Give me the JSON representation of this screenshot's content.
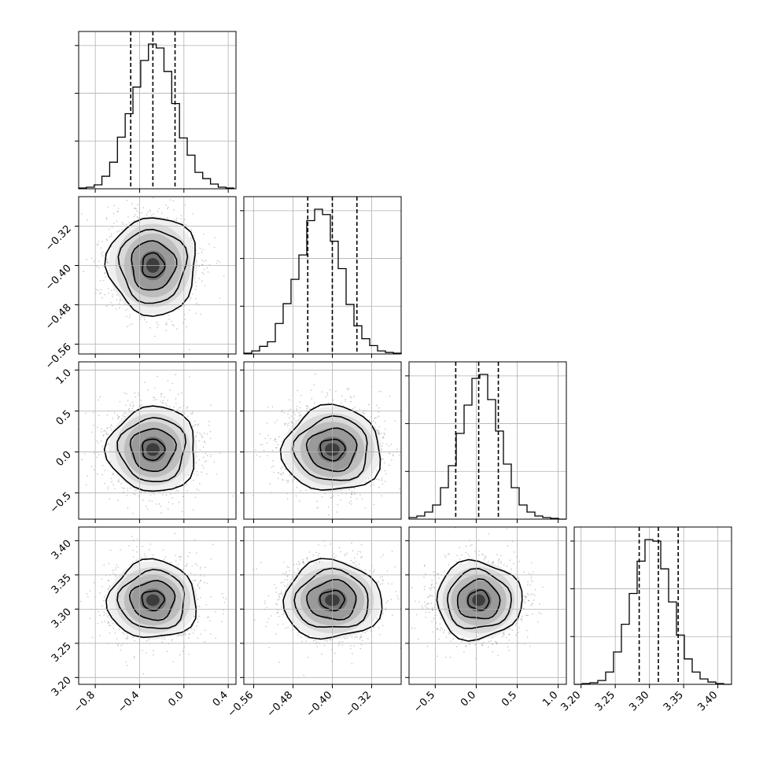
{
  "chart_data": {
    "type": "corner",
    "n_params": 4,
    "grid": true,
    "params": [
      {
        "index": 0,
        "range": [
          -0.95,
          0.47
        ],
        "ticks": [
          -0.8,
          -0.4,
          0.0,
          0.4
        ],
        "tick_labels": [
          "−0.8",
          "−0.4",
          "0.0",
          "0.4"
        ],
        "quantiles": {
          "q16": -0.48,
          "q50": -0.28,
          "q84": -0.08
        },
        "hist_bins": [
          -0.95,
          -0.88,
          -0.81,
          -0.74,
          -0.67,
          -0.6,
          -0.53,
          -0.46,
          -0.39,
          -0.32,
          -0.25,
          -0.18,
          -0.11,
          -0.04,
          0.03,
          0.1,
          0.17,
          0.24,
          0.31,
          0.38,
          0.45
        ],
        "hist_counts": [
          1,
          2,
          5,
          16,
          34,
          66,
          96,
          130,
          164,
          185,
          180,
          150,
          109,
          65,
          43,
          21,
          13,
          6,
          2,
          1
        ]
      },
      {
        "index": 1,
        "range": [
          -0.58,
          -0.26
        ],
        "ticks": [
          -0.56,
          -0.48,
          -0.4,
          -0.32
        ],
        "tick_labels": [
          "−0.56",
          "−0.48",
          "−0.40",
          "−0.32"
        ],
        "quantiles": {
          "q16": -0.45,
          "q50": -0.4,
          "q84": -0.35
        },
        "hist_bins": [
          -0.58,
          -0.564,
          -0.548,
          -0.532,
          -0.516,
          -0.5,
          -0.484,
          -0.468,
          -0.452,
          -0.436,
          -0.42,
          -0.404,
          -0.388,
          -0.372,
          -0.356,
          -0.34,
          -0.324,
          -0.308,
          -0.292,
          -0.276,
          -0.26
        ],
        "hist_counts": [
          1,
          4,
          10,
          16,
          40,
          66,
          98,
          130,
          175,
          190,
          183,
          148,
          112,
          65,
          37,
          20,
          11,
          4,
          2,
          1
        ]
      },
      {
        "index": 2,
        "range": [
          -0.82,
          1.1
        ],
        "ticks": [
          -0.5,
          0.0,
          0.5,
          1.0
        ],
        "tick_labels": [
          "−0.5",
          "0.0",
          "0.5",
          "1.0"
        ],
        "quantiles": {
          "q16": -0.25,
          "q50": 0.03,
          "q84": 0.27
        },
        "hist_bins": [
          -0.82,
          -0.724,
          -0.628,
          -0.532,
          -0.436,
          -0.34,
          -0.244,
          -0.148,
          -0.052,
          0.044,
          0.14,
          0.236,
          0.332,
          0.428,
          0.524,
          0.62,
          0.716,
          0.812,
          0.908,
          1.004,
          1.1
        ],
        "hist_counts": [
          2,
          4,
          9,
          18,
          40,
          68,
          109,
          145,
          179,
          184,
          152,
          112,
          70,
          40,
          18,
          9,
          4,
          2,
          1,
          0
        ]
      },
      {
        "index": 3,
        "range": [
          3.19,
          3.42
        ],
        "ticks": [
          3.2,
          3.25,
          3.3,
          3.35,
          3.4
        ],
        "tick_labels": [
          "3.20",
          "3.25",
          "3.30",
          "3.35",
          "3.40"
        ],
        "quantiles": {
          "q16": 3.285,
          "q50": 3.313,
          "q84": 3.342
        },
        "hist_bins": [
          3.19,
          3.2015,
          3.213,
          3.2245,
          3.236,
          3.2475,
          3.259,
          3.2705,
          3.282,
          3.2935,
          3.305,
          3.3165,
          3.328,
          3.3395,
          3.351,
          3.3625,
          3.374,
          3.3855,
          3.397,
          3.4085,
          3.42
        ],
        "hist_counts": [
          0,
          1,
          2,
          5,
          16,
          42,
          78,
          118,
          160,
          188,
          186,
          150,
          107,
          64,
          33,
          16,
          7,
          3,
          1,
          0
        ]
      }
    ],
    "covariance_corr": [
      [
        1.0,
        0.0,
        0.02,
        -0.01
      ],
      [
        0.0,
        1.0,
        0.01,
        0.0
      ],
      [
        0.02,
        0.01,
        1.0,
        0.0
      ],
      [
        -0.01,
        0.0,
        0.0,
        1.0
      ]
    ],
    "contour_sigma_levels": [
      0.5,
      1.0,
      1.5,
      2.0
    ],
    "colors": {
      "line": "#000000",
      "grid": "#b0b0b0",
      "points": "#7f7f7f"
    }
  }
}
